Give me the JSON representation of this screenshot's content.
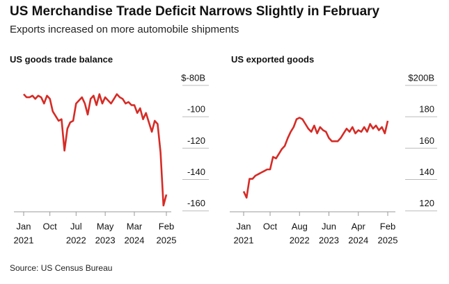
{
  "title": "US Merchandise Trade Deficit Narrows Slightly in February",
  "subtitle": "Exports increased on more automobile shipments",
  "source": "Source: US Census Bureau",
  "chart_data": [
    {
      "type": "line",
      "title": "US goods trade balance",
      "x": [
        "2021-01",
        "2021-02",
        "2021-03",
        "2021-04",
        "2021-05",
        "2021-06",
        "2021-07",
        "2021-08",
        "2021-09",
        "2021-10",
        "2021-11",
        "2021-12",
        "2022-01",
        "2022-02",
        "2022-03",
        "2022-04",
        "2022-05",
        "2022-06",
        "2022-07",
        "2022-08",
        "2022-09",
        "2022-10",
        "2022-11",
        "2022-12",
        "2023-01",
        "2023-02",
        "2023-03",
        "2023-04",
        "2023-05",
        "2023-06",
        "2023-07",
        "2023-08",
        "2023-09",
        "2023-10",
        "2023-11",
        "2023-12",
        "2024-01",
        "2024-02",
        "2024-03",
        "2024-04",
        "2024-05",
        "2024-06",
        "2024-07",
        "2024-08",
        "2024-09",
        "2024-10",
        "2024-11",
        "2024-12",
        "2025-01",
        "2025-02"
      ],
      "series": [
        {
          "name": "US goods trade balance",
          "color": "#d62b25",
          "values": [
            -90,
            -92,
            -92,
            -91,
            -93,
            -91,
            -92,
            -96,
            -91,
            -93,
            -101,
            -104,
            -107,
            -106,
            -126,
            -112,
            -108,
            -107,
            -96,
            -94,
            -92,
            -96,
            -103,
            -93,
            -91,
            -97,
            -90,
            -96,
            -92,
            -94,
            -96,
            -93,
            -90,
            -92,
            -93,
            -96,
            -95,
            -97,
            -97,
            -102,
            -99,
            -106,
            -102,
            -108,
            -114,
            -107,
            -109,
            -127,
            -161,
            -154
          ]
        }
      ],
      "ylim": [
        -165,
        -80
      ],
      "yticks": [
        {
          "value": -80,
          "label": "$-80B"
        },
        -100,
        -120,
        -140,
        -160
      ],
      "xticks": [
        {
          "value": "2021-01",
          "label": "Jan",
          "year": "2021"
        },
        {
          "value": "2021-10",
          "label": "Oct"
        },
        {
          "value": "2022-07",
          "label": "Jul",
          "year": "2022"
        },
        {
          "value": "2023-05",
          "label": "May",
          "year": "2023"
        },
        {
          "value": "2024-03",
          "label": "Mar",
          "year": "2024"
        },
        {
          "value": "2025-02",
          "label": "Feb",
          "year": "2025"
        }
      ]
    },
    {
      "type": "line",
      "title": "US exported goods",
      "x": [
        "2021-01",
        "2021-02",
        "2021-03",
        "2021-04",
        "2021-05",
        "2021-06",
        "2021-07",
        "2021-08",
        "2021-09",
        "2021-10",
        "2021-11",
        "2021-12",
        "2022-01",
        "2022-02",
        "2022-03",
        "2022-04",
        "2022-05",
        "2022-06",
        "2022-07",
        "2022-08",
        "2022-09",
        "2022-10",
        "2022-11",
        "2022-12",
        "2023-01",
        "2023-02",
        "2023-03",
        "2023-04",
        "2023-05",
        "2023-06",
        "2023-07",
        "2023-08",
        "2023-09",
        "2023-10",
        "2023-11",
        "2023-12",
        "2024-01",
        "2024-02",
        "2024-03",
        "2024-04",
        "2024-05",
        "2024-06",
        "2024-07",
        "2024-08",
        "2024-09",
        "2024-10",
        "2024-11",
        "2024-12",
        "2025-01",
        "2025-02"
      ],
      "series": [
        {
          "name": "US exported goods",
          "color": "#d62b25",
          "values": [
            128,
            124,
            136,
            136,
            138,
            139,
            140,
            141,
            142,
            142,
            150,
            149,
            152,
            155,
            157,
            162,
            166,
            169,
            174,
            175,
            174,
            171,
            168,
            166,
            170,
            165,
            169,
            167,
            166,
            162,
            160,
            160,
            160,
            162,
            165,
            168,
            166,
            169,
            165,
            167,
            166,
            169,
            166,
            171,
            168,
            170,
            167,
            169,
            165,
            173
          ]
        }
      ],
      "ylim": [
        115,
        200
      ],
      "yticks": [
        {
          "value": 200,
          "label": "$200B"
        },
        180,
        160,
        140,
        120
      ],
      "xticks": [
        {
          "value": "2021-01",
          "label": "Jan",
          "year": "2021"
        },
        {
          "value": "2021-10",
          "label": "Oct"
        },
        {
          "value": "2022-08",
          "label": "Aug",
          "year": "2022"
        },
        {
          "value": "2023-06",
          "label": "Jun",
          "year": "2023"
        },
        {
          "value": "2024-04",
          "label": "Apr",
          "year": "2024"
        },
        {
          "value": "2025-02",
          "label": "Feb",
          "year": "2025"
        }
      ]
    }
  ]
}
